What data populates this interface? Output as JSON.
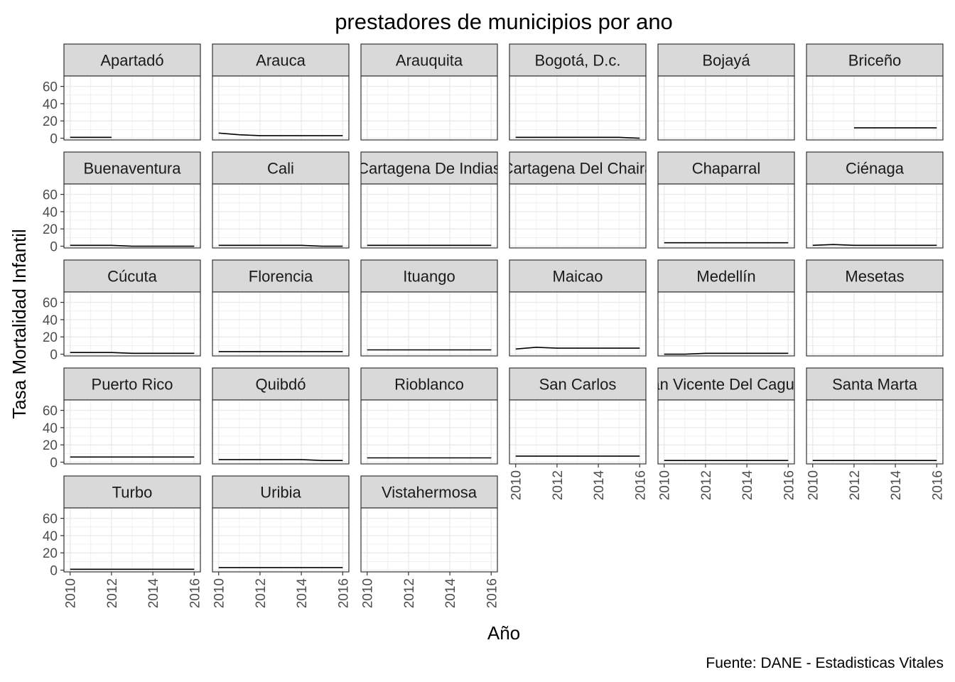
{
  "chart_data": {
    "type": "line",
    "title": "prestadores de municipios por ano",
    "xlabel": "Año",
    "ylabel": "Tasa Mortalidad Infantil",
    "caption": "Fuente: DANE - Estadisticas Vitales",
    "xlim": [
      2009.7,
      2016.3
    ],
    "ylim": [
      -2,
      72
    ],
    "x_ticks": [
      2010,
      2012,
      2014,
      2016
    ],
    "x_tick_labels": [
      "2010",
      "2012",
      "2014",
      "2016"
    ],
    "y_ticks": [
      0,
      20,
      40,
      60
    ],
    "y_tick_labels": [
      "0",
      "20",
      "40",
      "60"
    ],
    "grid": true,
    "line_color": "#000000",
    "strip_fill": "#d9d9d9",
    "panel_border": "#333333",
    "grid_color": "#ebebeb",
    "panels": [
      {
        "name": "Apartadó",
        "x": [
          2010,
          2011,
          2012
        ],
        "y": [
          1,
          1,
          1
        ]
      },
      {
        "name": "Arauca",
        "x": [
          2010,
          2011,
          2012,
          2013,
          2014,
          2015,
          2016
        ],
        "y": [
          6,
          4,
          3,
          3,
          3,
          3,
          3
        ]
      },
      {
        "name": "Arauquita",
        "x": [],
        "y": []
      },
      {
        "name": "Bogotá, D.c.",
        "x": [
          2010,
          2011,
          2012,
          2013,
          2014,
          2015,
          2016
        ],
        "y": [
          1,
          1,
          1,
          1,
          1,
          1,
          0
        ]
      },
      {
        "name": "Bojayá",
        "x": [],
        "y": []
      },
      {
        "name": "Briceño",
        "x": [
          2012,
          2013,
          2014,
          2015,
          2016
        ],
        "y": [
          12,
          12,
          12,
          12,
          12
        ]
      },
      {
        "name": "Buenaventura",
        "x": [
          2010,
          2011,
          2012,
          2013,
          2014,
          2015,
          2016
        ],
        "y": [
          1,
          1,
          1,
          0,
          0,
          0,
          0
        ]
      },
      {
        "name": "Cali",
        "x": [
          2010,
          2011,
          2012,
          2013,
          2014,
          2015,
          2016
        ],
        "y": [
          1,
          1,
          1,
          1,
          1,
          0,
          0
        ]
      },
      {
        "name": "Cartagena De Indias",
        "x": [
          2010,
          2011,
          2012,
          2013,
          2014,
          2015,
          2016
        ],
        "y": [
          1,
          1,
          1,
          1,
          1,
          1,
          1
        ]
      },
      {
        "name": "Cartagena Del Chairá",
        "x": [],
        "y": []
      },
      {
        "name": "Chaparral",
        "x": [
          2010,
          2011,
          2012,
          2013,
          2014,
          2015,
          2016
        ],
        "y": [
          4,
          4,
          4,
          4,
          4,
          4,
          4
        ]
      },
      {
        "name": "Ciénaga",
        "x": [
          2010,
          2011,
          2012,
          2013,
          2014,
          2015,
          2016
        ],
        "y": [
          1,
          2,
          1,
          1,
          1,
          1,
          1
        ]
      },
      {
        "name": "Cúcuta",
        "x": [
          2010,
          2011,
          2012,
          2013,
          2014,
          2015,
          2016
        ],
        "y": [
          2,
          2,
          2,
          1,
          1,
          1,
          1
        ]
      },
      {
        "name": "Florencia",
        "x": [
          2010,
          2011,
          2012,
          2013,
          2014,
          2015,
          2016
        ],
        "y": [
          3,
          3,
          3,
          3,
          3,
          3,
          3
        ]
      },
      {
        "name": "Ituango",
        "x": [
          2010,
          2011,
          2012,
          2013,
          2014,
          2015,
          2016
        ],
        "y": [
          5,
          5,
          5,
          5,
          5,
          5,
          5
        ]
      },
      {
        "name": "Maicao",
        "x": [
          2010,
          2011,
          2012,
          2013,
          2014,
          2015,
          2016
        ],
        "y": [
          6,
          8,
          7,
          7,
          7,
          7,
          7
        ]
      },
      {
        "name": "Medellín",
        "x": [
          2010,
          2011,
          2012,
          2013,
          2014,
          2015,
          2016
        ],
        "y": [
          0,
          0,
          1,
          1,
          1,
          1,
          1
        ]
      },
      {
        "name": "Mesetas",
        "x": [],
        "y": []
      },
      {
        "name": "Puerto Rico",
        "x": [
          2010,
          2011,
          2012,
          2013,
          2014,
          2015,
          2016
        ],
        "y": [
          6,
          6,
          6,
          6,
          6,
          6,
          6
        ]
      },
      {
        "name": "Quibdó",
        "x": [
          2010,
          2011,
          2012,
          2013,
          2014,
          2015,
          2016
        ],
        "y": [
          3,
          3,
          3,
          3,
          3,
          2,
          2
        ]
      },
      {
        "name": "Rioblanco",
        "x": [
          2010,
          2011,
          2012,
          2013,
          2014,
          2015,
          2016
        ],
        "y": [
          5,
          5,
          5,
          5,
          5,
          5,
          5
        ]
      },
      {
        "name": "San Carlos",
        "x": [
          2010,
          2011,
          2012,
          2013,
          2014,
          2015,
          2016
        ],
        "y": [
          7,
          7,
          7,
          7,
          7,
          7,
          7
        ]
      },
      {
        "name": "San Vicente Del Caguán",
        "x": [
          2010,
          2011,
          2012,
          2013,
          2014,
          2015,
          2016
        ],
        "y": [
          2,
          2,
          2,
          2,
          2,
          2,
          2
        ]
      },
      {
        "name": "Santa Marta",
        "x": [
          2010,
          2011,
          2012,
          2013,
          2014,
          2015,
          2016
        ],
        "y": [
          2,
          2,
          2,
          2,
          2,
          2,
          2
        ]
      },
      {
        "name": "Turbo",
        "x": [
          2010,
          2011,
          2012,
          2013,
          2014,
          2015,
          2016
        ],
        "y": [
          1,
          1,
          1,
          1,
          1,
          1,
          1
        ]
      },
      {
        "name": "Uribia",
        "x": [
          2010,
          2011,
          2012,
          2013,
          2014,
          2015,
          2016
        ],
        "y": [
          3,
          3,
          3,
          3,
          3,
          3,
          3
        ]
      },
      {
        "name": "Vistahermosa",
        "x": [],
        "y": []
      }
    ]
  }
}
